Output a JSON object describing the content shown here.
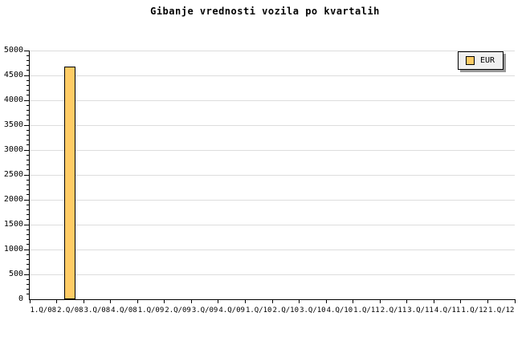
{
  "title": "Gibanje vrednosti vozila po kvartalih",
  "legend": {
    "label": "EUR",
    "swatch_color": "#FFCC66"
  },
  "colors": {
    "background": "#FFFFFF",
    "bar_fill": "#FFCC66",
    "bar_border": "#000000",
    "grid": "#DDDDDD",
    "axis": "#000000",
    "tick": "#000000",
    "text": "#000000",
    "legend_bg": "#F0F0F0",
    "legend_shadow": "#999999"
  },
  "chart_data": {
    "type": "bar",
    "title": "Gibanje vrednosti vozila po kvartalih",
    "xlabel": "",
    "ylabel": "",
    "categories": [
      "1.Q/08",
      "2.Q/08",
      "3.Q/08",
      "4.Q/08",
      "1.Q/09",
      "2.Q/09",
      "3.Q/09",
      "4.Q/09",
      "1.Q/10",
      "2.Q/10",
      "3.Q/10",
      "4.Q/10",
      "1.Q/11",
      "2.Q/11",
      "3.Q/11",
      "4.Q/11",
      "1.Q/12",
      "1.Q/12"
    ],
    "series": [
      {
        "name": "EUR",
        "values": [
          null,
          4670,
          null,
          null,
          null,
          null,
          null,
          null,
          null,
          null,
          null,
          null,
          null,
          null,
          null,
          null,
          null,
          null
        ]
      }
    ],
    "ylim": [
      0,
      5000
    ],
    "ytick_interval": 500,
    "yminor_tick_interval": 100,
    "ytick_labels": [
      "0",
      "500",
      "1000",
      "1500",
      "2000",
      "2500",
      "3000",
      "3500",
      "4000",
      "4500",
      "5000"
    ],
    "grid": true,
    "grid_axis": "y",
    "legend_position": "top-right"
  }
}
